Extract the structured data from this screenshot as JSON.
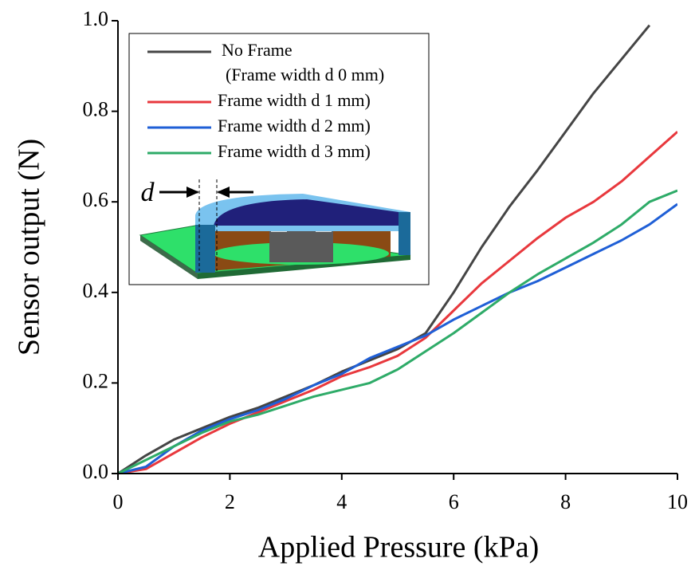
{
  "chart_data": {
    "type": "line",
    "xlabel": "Applied Pressure (kPa)",
    "ylabel": "Sensor output (N)",
    "x": [
      0,
      0.5,
      1,
      1.5,
      2,
      2.5,
      3,
      3.5,
      4,
      4.5,
      5,
      5.5,
      6,
      6.5,
      7,
      7.5,
      8,
      8.5,
      9,
      9.5,
      10
    ],
    "series": [
      {
        "name": "No Frame",
        "color": "#454545",
        "values": [
          0,
          0.04,
          0.075,
          0.1,
          0.125,
          0.145,
          0.17,
          0.195,
          0.225,
          0.25,
          0.275,
          0.31,
          0.4,
          0.5,
          0.59,
          0.67,
          0.755,
          0.84,
          0.915,
          0.99,
          null
        ]
      },
      {
        "name": "Frame width d 1 mm)",
        "color": "#e8383d",
        "values": [
          0,
          0.01,
          0.045,
          0.08,
          0.11,
          0.135,
          0.16,
          0.185,
          0.215,
          0.235,
          0.26,
          0.3,
          0.36,
          0.42,
          0.47,
          0.52,
          0.565,
          0.6,
          0.645,
          0.7,
          0.755
        ]
      },
      {
        "name": "Frame width d 2 mm)",
        "color": "#1f5fd6",
        "values": [
          0,
          0.015,
          0.06,
          0.095,
          0.12,
          0.14,
          0.165,
          0.195,
          0.22,
          0.255,
          0.28,
          0.305,
          0.34,
          0.37,
          0.4,
          0.425,
          0.455,
          0.485,
          0.515,
          0.55,
          0.595
        ]
      },
      {
        "name": "Frame width d 3 mm)",
        "color": "#2eab68",
        "values": [
          0,
          0.03,
          0.06,
          0.09,
          0.115,
          0.13,
          0.15,
          0.17,
          0.185,
          0.2,
          0.23,
          0.27,
          0.31,
          0.355,
          0.4,
          0.44,
          0.475,
          0.51,
          0.55,
          0.6,
          0.625
        ]
      }
    ],
    "legend_subtext": "(Frame width d 0 mm)",
    "inset_label": "d",
    "xlim": [
      0,
      10
    ],
    "xticks": [
      0,
      2,
      4,
      6,
      8,
      10
    ],
    "ylim": [
      0,
      1
    ],
    "yticks": [
      {
        "value": 0,
        "label": "0.0"
      },
      0.2,
      0.4,
      0.6,
      0.8,
      {
        "value": 1,
        "label": "1.0"
      }
    ],
    "legend": "upper left",
    "grid": false
  }
}
